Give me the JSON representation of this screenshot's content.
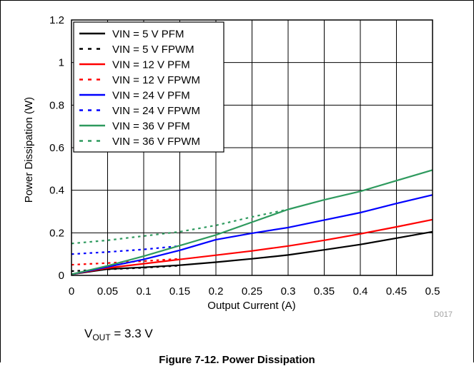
{
  "chart_data": {
    "type": "line",
    "xlabel": "Output Current (A)",
    "ylabel": "Power Dissipation (W)",
    "xlim": [
      0,
      0.5
    ],
    "ylim": [
      0,
      1.2
    ],
    "xticks": [
      "0",
      "0.05",
      "0.1",
      "0.15",
      "0.2",
      "0.25",
      "0.3",
      "0.35",
      "0.4",
      "0.45",
      "0.5"
    ],
    "yticks": [
      "0",
      "0.2",
      "0.4",
      "0.6",
      "0.8",
      "1",
      "1.2"
    ],
    "grid": true,
    "legend_position": "top-left",
    "series": [
      {
        "name": "VIN = 5 V  PFM",
        "color": "#000000",
        "dash": "solid",
        "x": [
          0,
          0.05,
          0.1,
          0.15,
          0.2,
          0.25,
          0.3,
          0.35,
          0.4,
          0.45,
          0.5
        ],
        "y": [
          0.005,
          0.03,
          0.038,
          0.048,
          0.062,
          0.078,
          0.096,
          0.12,
          0.145,
          0.175,
          0.205
        ]
      },
      {
        "name": "VIN = 5 V  FPWM",
        "color": "#000000",
        "dash": "dotted",
        "x": [
          0,
          0.05,
          0.1,
          0.15
        ],
        "y": [
          0.02,
          0.028,
          0.036,
          0.046
        ]
      },
      {
        "name": "VIN = 12 V PFM",
        "color": "#ff0000",
        "dash": "solid",
        "x": [
          0,
          0.05,
          0.1,
          0.15,
          0.2,
          0.25,
          0.3,
          0.35,
          0.4,
          0.45,
          0.5
        ],
        "y": [
          0.005,
          0.035,
          0.055,
          0.075,
          0.095,
          0.115,
          0.138,
          0.165,
          0.195,
          0.228,
          0.262
        ]
      },
      {
        "name": "VIN = 12 V FPWM",
        "color": "#ff0000",
        "dash": "dotted",
        "x": [
          0,
          0.05,
          0.1,
          0.15
        ],
        "y": [
          0.05,
          0.058,
          0.067,
          0.078
        ]
      },
      {
        "name": "VIN = 24 V PFM",
        "color": "#0000ff",
        "dash": "solid",
        "x": [
          0,
          0.05,
          0.1,
          0.15,
          0.2,
          0.25,
          0.3,
          0.35,
          0.4,
          0.45,
          0.5
        ],
        "y": [
          0.005,
          0.04,
          0.075,
          0.118,
          0.168,
          0.198,
          0.225,
          0.26,
          0.295,
          0.338,
          0.378
        ]
      },
      {
        "name": "VIN = 24 V FPWM",
        "color": "#0000ff",
        "dash": "dotted",
        "x": [
          0,
          0.05,
          0.1,
          0.15
        ],
        "y": [
          0.1,
          0.11,
          0.122,
          0.138
        ]
      },
      {
        "name": "VIN = 36 V PFM",
        "color": "#2e9a5e",
        "dash": "solid",
        "x": [
          0,
          0.05,
          0.1,
          0.15,
          0.2,
          0.25,
          0.3,
          0.35,
          0.4,
          0.45,
          0.5
        ],
        "y": [
          0.005,
          0.045,
          0.09,
          0.14,
          0.19,
          0.25,
          0.31,
          0.355,
          0.395,
          0.445,
          0.495
        ]
      },
      {
        "name": "VIN = 36 V FPWM",
        "color": "#2e9a5e",
        "dash": "dotted",
        "x": [
          0,
          0.05,
          0.1,
          0.15,
          0.2,
          0.25,
          0.3
        ],
        "y": [
          0.15,
          0.165,
          0.185,
          0.205,
          0.235,
          0.275,
          0.31
        ]
      }
    ]
  },
  "chart_id": "D017",
  "vout": {
    "label": "V",
    "subscript": "OUT",
    "value": " = 3.3 V"
  },
  "caption": "Figure 7-12. Power Dissipation"
}
